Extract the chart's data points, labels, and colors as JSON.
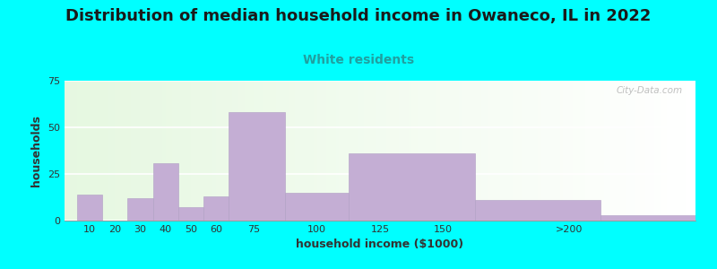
{
  "title": "Distribution of median household income in Owaneco, IL in 2022",
  "subtitle": "White residents",
  "xlabel": "household income ($1000)",
  "ylabel": "households",
  "background_color": "#00FFFF",
  "bar_color": "#c4aed4",
  "bar_edge_color": "#b09ec4",
  "values": [
    14,
    0,
    12,
    31,
    7,
    13,
    58,
    15,
    36,
    11,
    3
  ],
  "bar_lefts": [
    5,
    15,
    25,
    35,
    45,
    55,
    65,
    87.5,
    112.5,
    162.5,
    212.5
  ],
  "bar_widths": [
    10,
    10,
    10,
    10,
    10,
    10,
    22.5,
    25,
    50,
    50,
    37.5
  ],
  "xlim": [
    0,
    250
  ],
  "ylim": [
    0,
    75
  ],
  "yticks": [
    0,
    25,
    50,
    75
  ],
  "xtick_positions": [
    10,
    20,
    30,
    40,
    50,
    60,
    75,
    100,
    125,
    150,
    200
  ],
  "xtick_labels": [
    "10",
    "20",
    "30",
    "40",
    "50",
    "60",
    "75",
    "100",
    "125",
    "150",
    ">200"
  ],
  "title_fontsize": 13,
  "subtitle_fontsize": 10,
  "subtitle_color": "#20a0a0",
  "watermark": "City-Data.com"
}
